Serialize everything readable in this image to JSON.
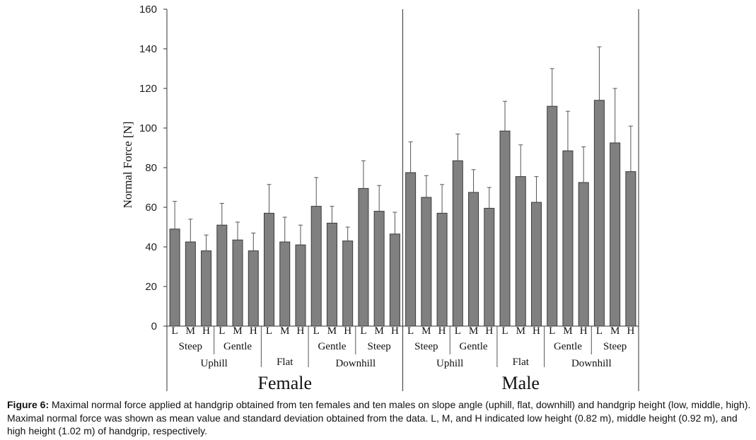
{
  "chart_data": {
    "type": "bar",
    "ylabel": "Normal Force [N]",
    "ylim": [
      0,
      160
    ],
    "yticks": [
      "0",
      "20",
      "40",
      "60",
      "80",
      "100",
      "120",
      "140",
      "160"
    ],
    "bar_color": "#808080",
    "groups": [
      {
        "label": "Female",
        "conditions": [
          {
            "slope": "Uphill",
            "angles": [
              {
                "angle": "Steep",
                "bars": [
                  {
                    "height": "L",
                    "mean": 49,
                    "sd": 14
                  },
                  {
                    "height": "M",
                    "mean": 42.5,
                    "sd": 11.5
                  },
                  {
                    "height": "H",
                    "mean": 38,
                    "sd": 8
                  }
                ]
              },
              {
                "angle": "Gentle",
                "bars": [
                  {
                    "height": "L",
                    "mean": 51,
                    "sd": 11
                  },
                  {
                    "height": "M",
                    "mean": 43.5,
                    "sd": 9
                  },
                  {
                    "height": "H",
                    "mean": 38,
                    "sd": 9
                  }
                ]
              }
            ]
          },
          {
            "slope": "Flat",
            "angles": [
              {
                "angle": "",
                "bars": [
                  {
                    "height": "L",
                    "mean": 57,
                    "sd": 14.5
                  },
                  {
                    "height": "M",
                    "mean": 42.5,
                    "sd": 12.5
                  },
                  {
                    "height": "H",
                    "mean": 41,
                    "sd": 10
                  }
                ]
              }
            ]
          },
          {
            "slope": "Downhill",
            "angles": [
              {
                "angle": "Gentle",
                "bars": [
                  {
                    "height": "L",
                    "mean": 60.5,
                    "sd": 14.5
                  },
                  {
                    "height": "M",
                    "mean": 52,
                    "sd": 8.5
                  },
                  {
                    "height": "H",
                    "mean": 43,
                    "sd": 7
                  }
                ]
              },
              {
                "angle": "Steep",
                "bars": [
                  {
                    "height": "L",
                    "mean": 69.5,
                    "sd": 14
                  },
                  {
                    "height": "M",
                    "mean": 58,
                    "sd": 13
                  },
                  {
                    "height": "H",
                    "mean": 46.5,
                    "sd": 11
                  }
                ]
              }
            ]
          }
        ]
      },
      {
        "label": "Male",
        "conditions": [
          {
            "slope": "Uphill",
            "angles": [
              {
                "angle": "Steep",
                "bars": [
                  {
                    "height": "L",
                    "mean": 77.5,
                    "sd": 15.5
                  },
                  {
                    "height": "M",
                    "mean": 65,
                    "sd": 11
                  },
                  {
                    "height": "H",
                    "mean": 57,
                    "sd": 14.5
                  }
                ]
              },
              {
                "angle": "Gentle",
                "bars": [
                  {
                    "height": "L",
                    "mean": 83.5,
                    "sd": 13.5
                  },
                  {
                    "height": "M",
                    "mean": 67.5,
                    "sd": 11.5
                  },
                  {
                    "height": "H",
                    "mean": 59.5,
                    "sd": 10.5
                  }
                ]
              }
            ]
          },
          {
            "slope": "Flat",
            "angles": [
              {
                "angle": "",
                "bars": [
                  {
                    "height": "L",
                    "mean": 98.5,
                    "sd": 15
                  },
                  {
                    "height": "M",
                    "mean": 75.5,
                    "sd": 16
                  },
                  {
                    "height": "H",
                    "mean": 62.5,
                    "sd": 13
                  }
                ]
              }
            ]
          },
          {
            "slope": "Downhill",
            "angles": [
              {
                "angle": "Gentle",
                "bars": [
                  {
                    "height": "L",
                    "mean": 111,
                    "sd": 19
                  },
                  {
                    "height": "M",
                    "mean": 88.5,
                    "sd": 20
                  },
                  {
                    "height": "H",
                    "mean": 72.5,
                    "sd": 18
                  }
                ]
              },
              {
                "angle": "Steep",
                "bars": [
                  {
                    "height": "L",
                    "mean": 114,
                    "sd": 27
                  },
                  {
                    "height": "M",
                    "mean": 92.5,
                    "sd": 27.5
                  },
                  {
                    "height": "H",
                    "mean": 78,
                    "sd": 23
                  }
                ]
              }
            ]
          }
        ]
      }
    ]
  },
  "caption": {
    "label": "Figure 6:",
    "text": "Maximal normal force applied at handgrip obtained from ten females and ten males on slope angle (uphill, flat, downhill) and handgrip height (low, middle, high). Maximal normal force was shown as mean value and standard deviation obtained from the data. L, M, and H indicated low height (0.82 m), middle height (0.92 m), and high height (1.02 m) of handgrip, respectively."
  }
}
